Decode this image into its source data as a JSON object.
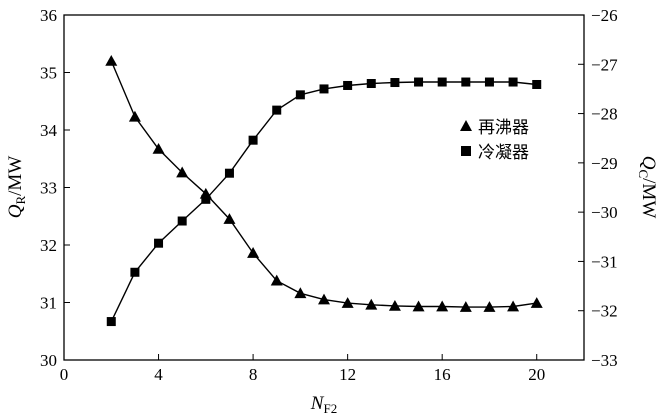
{
  "chart_data": {
    "type": "line",
    "xlabel": {
      "main": "N",
      "sub": "F2"
    },
    "ylabel_left": {
      "main": "Q",
      "sub": "R",
      "unit": "/MW"
    },
    "ylabel_right": {
      "main": "Q",
      "sub": "C",
      "unit": "/MW"
    },
    "xlim": [
      0,
      22
    ],
    "ylim_left": [
      30,
      36
    ],
    "ylim_right": [
      -33,
      -26
    ],
    "xticks": [
      0,
      4,
      8,
      12,
      16,
      20
    ],
    "yticks_left": [
      30,
      31,
      32,
      33,
      34,
      35,
      36
    ],
    "yticks_right": [
      -33,
      -32,
      -31,
      -30,
      -29,
      -28,
      -27,
      -26
    ],
    "legend_position": "right-middle",
    "series": [
      {
        "name": "再沸器",
        "axis": "left",
        "marker": "triangle",
        "x": [
          2,
          3,
          4,
          5,
          6,
          7,
          8,
          9,
          10,
          11,
          12,
          13,
          14,
          15,
          16,
          17,
          18,
          19,
          20
        ],
        "values": [
          35.2,
          34.23,
          33.67,
          33.26,
          32.89,
          32.45,
          31.86,
          31.38,
          31.16,
          31.05,
          30.99,
          30.96,
          30.94,
          30.93,
          30.93,
          30.92,
          30.92,
          30.93,
          30.99
        ]
      },
      {
        "name": "冷凝器",
        "axis": "right",
        "marker": "square",
        "x": [
          2,
          3,
          4,
          5,
          6,
          7,
          8,
          9,
          10,
          11,
          12,
          13,
          14,
          15,
          16,
          17,
          18,
          19,
          20
        ],
        "values": [
          -32.22,
          -31.22,
          -30.63,
          -30.18,
          -29.74,
          -29.21,
          -28.54,
          -27.93,
          -27.62,
          -27.5,
          -27.43,
          -27.39,
          -27.37,
          -27.36,
          -27.36,
          -27.36,
          -27.36,
          -27.36,
          -27.41
        ]
      }
    ]
  }
}
